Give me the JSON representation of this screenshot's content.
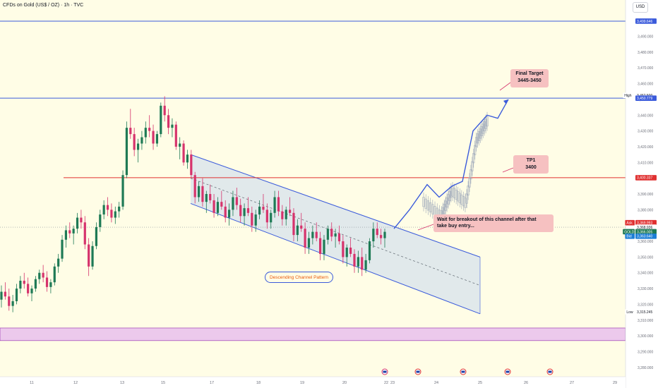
{
  "header": {
    "symbol_title": "CFDs on Gold (US$ / OZ) · 1h · TVC",
    "currency_button": "USD"
  },
  "chart_data": {
    "type": "candlestick",
    "title": "CFDs on Gold (US$ / OZ) · 1h · TVC",
    "y_axis": {
      "range": [
        3275,
        3505
      ],
      "tick_values": [
        3500,
        3490,
        3480,
        3470,
        3460,
        3450,
        3440,
        3430,
        3420,
        3410,
        3400,
        3390,
        3380,
        3370,
        3360,
        3350,
        3340,
        3330,
        3320,
        3310,
        3300,
        3290,
        3280
      ],
      "tick_labels": [
        "3,500.000",
        "3,490.000",
        "3,480.000",
        "3,470.000",
        "3,460.000",
        "3,450.000",
        "3,440.000",
        "3,430.000",
        "3,420.000",
        "3,410.000",
        "3,400.000",
        "3,390.000",
        "3,380.000",
        "3,370.000",
        "3,360.000",
        "3,350.000",
        "3,340.000",
        "3,330.000",
        "3,320.000",
        "3,310.000",
        "3,300.000",
        "3,290.000",
        "3,280.000"
      ]
    },
    "x_axis": {
      "tick_labels": [
        "11",
        "12",
        "13",
        "15",
        "17",
        "18",
        "19",
        "20",
        "22",
        "23",
        "24",
        "25",
        "26",
        "27",
        "29"
      ]
    },
    "price_labels": [
      {
        "text": "3,499.646",
        "value": 3499.646,
        "type": "line-blue"
      },
      {
        "text": "3,452.500",
        "value": 3452.5,
        "type": "high",
        "tag": "High"
      },
      {
        "text": "3,450.779",
        "value": 3450.779,
        "type": "line-blue"
      },
      {
        "text": "3,400.337",
        "value": 3400.337,
        "type": "line-red"
      },
      {
        "text": "3,369.993",
        "value": 3369.993,
        "type": "ask",
        "tag": "Ask"
      },
      {
        "text": "3,368.936",
        "value": 3368.936,
        "type": "last"
      },
      {
        "text": "3,366.005",
        "value": 3366.005,
        "type": "gold",
        "tag": "GOLD"
      },
      {
        "text": "3,363.640",
        "value": 3363.64,
        "type": "bid",
        "tag": "Bid"
      },
      {
        "text": "3,315.245",
        "value": 3315.245,
        "type": "low",
        "tag": "Low"
      }
    ],
    "horizontal_lines": [
      {
        "value": 3499.646,
        "color": "#3b5bdb"
      },
      {
        "value": 3450.779,
        "color": "#3b5bdb"
      },
      {
        "value": 3400.337,
        "color": "#e03131"
      }
    ],
    "zone": {
      "from": 3297,
      "to": 3305,
      "color": "#ecc9ec"
    },
    "annotations": {
      "final_target": [
        "Final Target",
        "3445-3450"
      ],
      "tp1": [
        "TP1",
        "3400"
      ],
      "breakout": [
        "Wait for breakout of this channel after that",
        "take buy entry..."
      ],
      "channel": "Descending Channel Pattern"
    },
    "candles": [
      [
        3323,
        3332,
        3318,
        3328
      ],
      [
        3328,
        3334,
        3323,
        3325
      ],
      [
        3325,
        3330,
        3316,
        3319
      ],
      [
        3319,
        3326,
        3315,
        3322
      ],
      [
        3322,
        3333,
        3320,
        3330
      ],
      [
        3330,
        3338,
        3327,
        3335
      ],
      [
        3335,
        3340,
        3330,
        3333
      ],
      [
        3333,
        3337,
        3325,
        3327
      ],
      [
        3327,
        3332,
        3322,
        3330
      ],
      [
        3330,
        3338,
        3328,
        3336
      ],
      [
        3336,
        3342,
        3333,
        3340
      ],
      [
        3340,
        3345,
        3334,
        3337
      ],
      [
        3337,
        3341,
        3328,
        3331
      ],
      [
        3331,
        3336,
        3327,
        3334
      ],
      [
        3334,
        3346,
        3332,
        3344
      ],
      [
        3344,
        3352,
        3340,
        3349
      ],
      [
        3349,
        3364,
        3347,
        3361
      ],
      [
        3361,
        3370,
        3356,
        3367
      ],
      [
        3367,
        3372,
        3362,
        3365
      ],
      [
        3365,
        3370,
        3358,
        3368
      ],
      [
        3368,
        3378,
        3365,
        3375
      ],
      [
        3375,
        3380,
        3368,
        3372
      ],
      [
        3372,
        3376,
        3355,
        3358
      ],
      [
        3358,
        3362,
        3338,
        3344
      ],
      [
        3344,
        3360,
        3342,
        3357
      ],
      [
        3357,
        3372,
        3355,
        3369
      ],
      [
        3369,
        3380,
        3366,
        3377
      ],
      [
        3377,
        3386,
        3374,
        3383
      ],
      [
        3383,
        3388,
        3376,
        3380
      ],
      [
        3380,
        3384,
        3372,
        3375
      ],
      [
        3375,
        3382,
        3371,
        3379
      ],
      [
        3379,
        3385,
        3375,
        3382
      ],
      [
        3382,
        3405,
        3380,
        3402
      ],
      [
        3402,
        3436,
        3400,
        3432
      ],
      [
        3432,
        3444,
        3425,
        3428
      ],
      [
        3428,
        3432,
        3414,
        3418
      ],
      [
        3418,
        3425,
        3410,
        3422
      ],
      [
        3422,
        3430,
        3418,
        3426
      ],
      [
        3426,
        3436,
        3422,
        3432
      ],
      [
        3432,
        3440,
        3426,
        3430
      ],
      [
        3430,
        3434,
        3418,
        3422
      ],
      [
        3422,
        3430,
        3420,
        3428
      ],
      [
        3428,
        3448,
        3426,
        3446
      ],
      [
        3446,
        3452,
        3436,
        3440
      ],
      [
        3440,
        3444,
        3428,
        3432
      ],
      [
        3432,
        3438,
        3426,
        3434
      ],
      [
        3434,
        3436,
        3418,
        3420
      ],
      [
        3420,
        3426,
        3412,
        3422
      ],
      [
        3422,
        3424,
        3408,
        3410
      ],
      [
        3410,
        3418,
        3406,
        3415
      ],
      [
        3415,
        3418,
        3400,
        3402
      ],
      [
        3402,
        3404,
        3384,
        3388
      ],
      [
        3388,
        3398,
        3385,
        3395
      ],
      [
        3395,
        3400,
        3382,
        3385
      ],
      [
        3385,
        3392,
        3378,
        3390
      ],
      [
        3390,
        3396,
        3384,
        3386
      ],
      [
        3386,
        3390,
        3375,
        3378
      ],
      [
        3378,
        3388,
        3376,
        3385
      ],
      [
        3385,
        3392,
        3380,
        3382
      ],
      [
        3382,
        3386,
        3372,
        3375
      ],
      [
        3375,
        3384,
        3370,
        3380
      ],
      [
        3380,
        3392,
        3376,
        3388
      ],
      [
        3388,
        3394,
        3380,
        3383
      ],
      [
        3383,
        3387,
        3372,
        3376
      ],
      [
        3376,
        3384,
        3370,
        3381
      ],
      [
        3381,
        3388,
        3376,
        3378
      ],
      [
        3378,
        3382,
        3366,
        3370
      ],
      [
        3370,
        3380,
        3366,
        3377
      ],
      [
        3377,
        3386,
        3374,
        3382
      ],
      [
        3382,
        3390,
        3378,
        3380
      ],
      [
        3380,
        3384,
        3368,
        3372
      ],
      [
        3372,
        3380,
        3368,
        3378
      ],
      [
        3378,
        3392,
        3375,
        3388
      ],
      [
        3388,
        3392,
        3376,
        3379
      ],
      [
        3379,
        3383,
        3370,
        3374
      ],
      [
        3374,
        3382,
        3370,
        3380
      ],
      [
        3380,
        3388,
        3376,
        3378
      ],
      [
        3378,
        3381,
        3360,
        3364
      ],
      [
        3364,
        3374,
        3360,
        3370
      ],
      [
        3370,
        3378,
        3366,
        3368
      ],
      [
        3368,
        3372,
        3352,
        3356
      ],
      [
        3356,
        3366,
        3352,
        3362
      ],
      [
        3362,
        3370,
        3358,
        3366
      ],
      [
        3366,
        3372,
        3360,
        3362
      ],
      [
        3362,
        3366,
        3348,
        3352
      ],
      [
        3352,
        3364,
        3348,
        3361
      ],
      [
        3361,
        3370,
        3358,
        3368
      ],
      [
        3368,
        3372,
        3360,
        3363
      ],
      [
        3363,
        3368,
        3356,
        3365
      ],
      [
        3365,
        3370,
        3358,
        3360
      ],
      [
        3360,
        3364,
        3346,
        3350
      ],
      [
        3350,
        3358,
        3344,
        3356
      ],
      [
        3356,
        3362,
        3350,
        3352
      ],
      [
        3352,
        3355,
        3340,
        3344
      ],
      [
        3344,
        3354,
        3340,
        3350
      ],
      [
        3350,
        3356,
        3338,
        3342
      ],
      [
        3342,
        3352,
        3340,
        3348
      ],
      [
        3348,
        3362,
        3346,
        3360
      ],
      [
        3360,
        3372,
        3356,
        3368
      ],
      [
        3368,
        3372,
        3362,
        3364
      ],
      [
        3364,
        3368,
        3358,
        3362
      ],
      [
        3362,
        3368,
        3356,
        3366
      ]
    ],
    "candle_x_range": [
      2,
      545
    ],
    "channel": {
      "upper": [
        [
          270,
          3415
        ],
        [
          680,
          3350
        ]
      ],
      "lower": [
        [
          270,
          3384
        ],
        [
          680,
          3314
        ]
      ],
      "mid": [
        [
          270,
          3400
        ],
        [
          680,
          3332
        ]
      ]
    },
    "projection_path": [
      [
        558,
        3368
      ],
      [
        580,
        3380
      ],
      [
        605,
        3396
      ],
      [
        622,
        3388
      ],
      [
        640,
        3395
      ],
      [
        655,
        3398
      ],
      [
        670,
        3430
      ],
      [
        690,
        3440
      ],
      [
        705,
        3438
      ],
      [
        720,
        3450
      ]
    ],
    "projection_path2": [
      [
        600,
        3385
      ],
      [
        625,
        3376
      ],
      [
        640,
        3392
      ],
      [
        660,
        3384
      ],
      [
        675,
        3424
      ],
      [
        690,
        3436
      ]
    ]
  }
}
